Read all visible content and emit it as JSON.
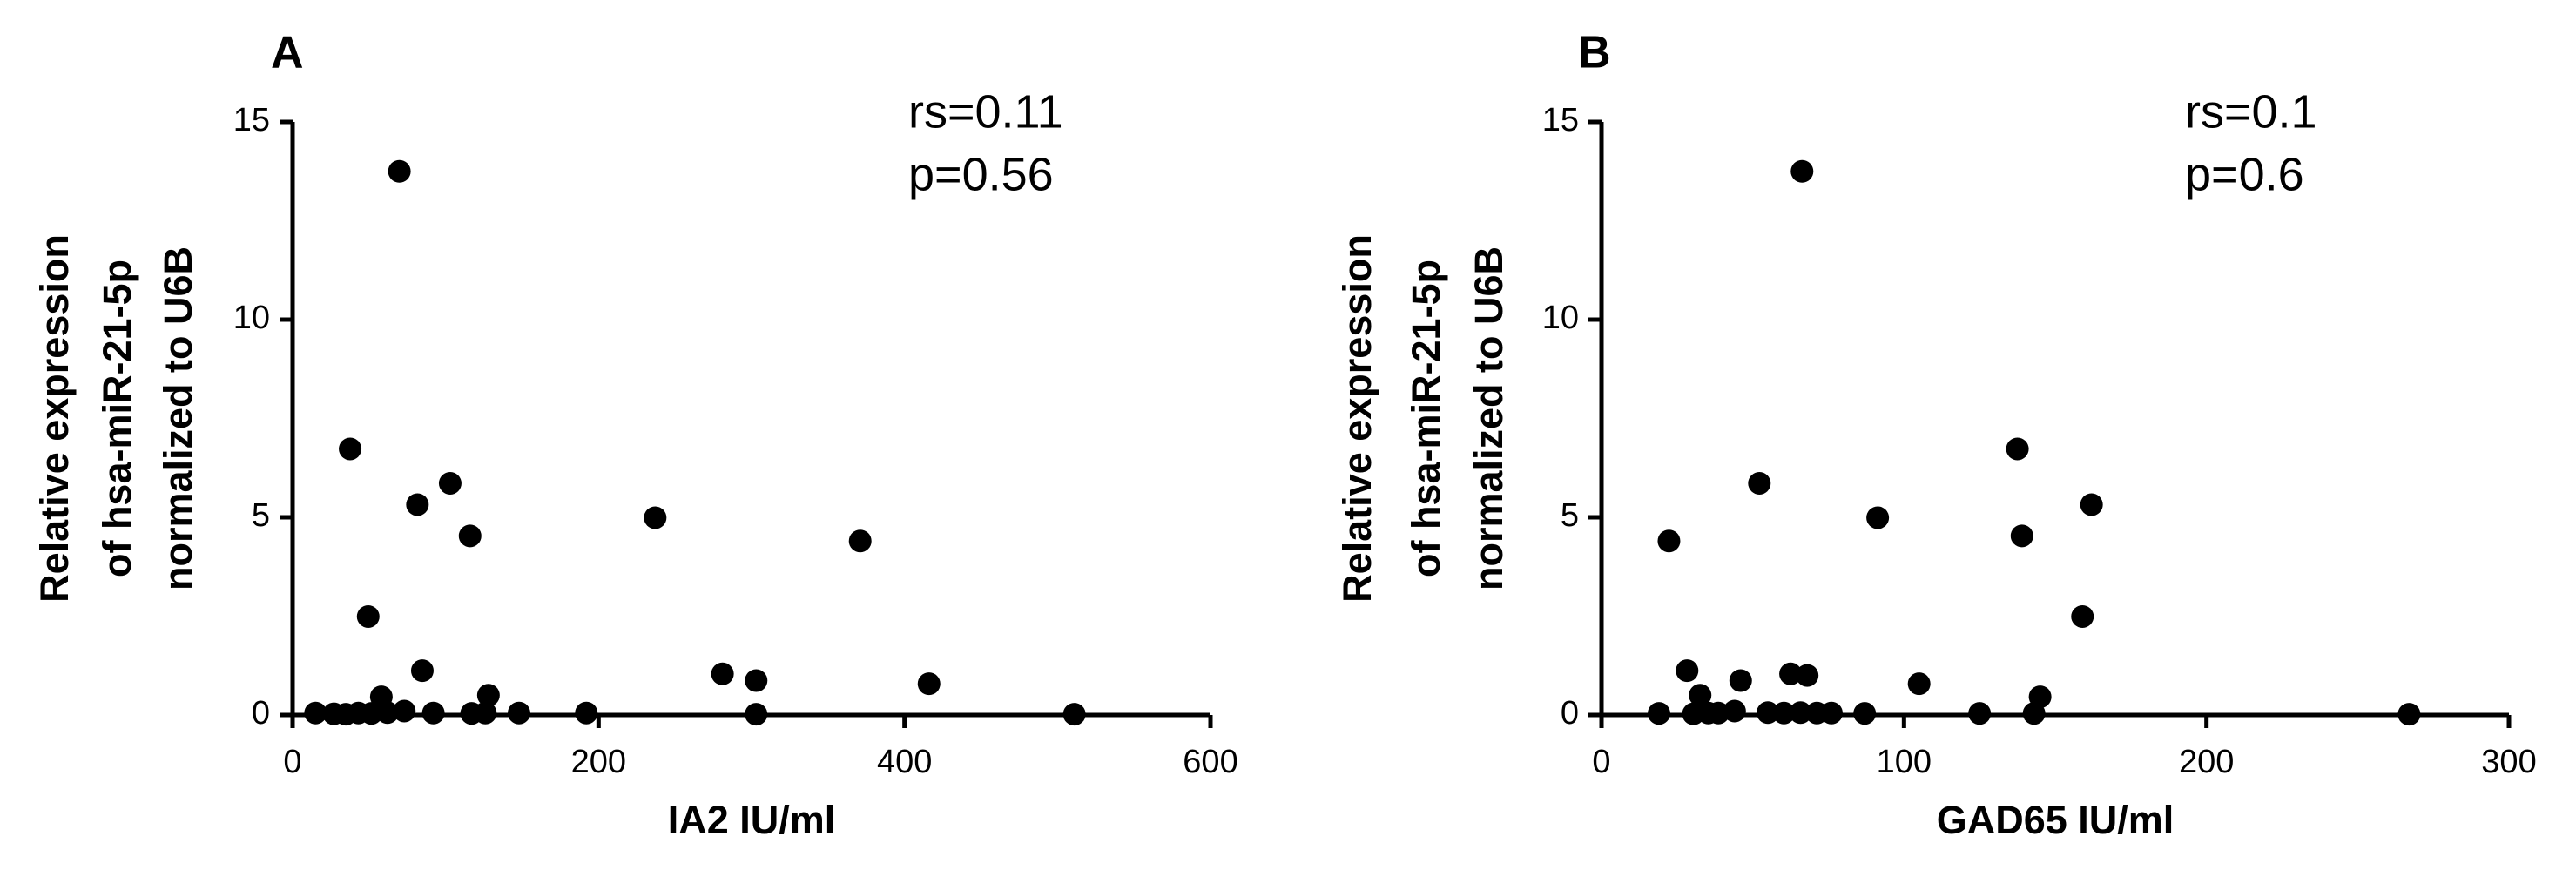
{
  "chart_data": [
    {
      "type": "scatter",
      "panel_label": "A",
      "xlabel": "IA2 IU/ml",
      "ylabel": [
        "Relative expression",
        "of hsa-miR-21-5p",
        "normalized to U6B"
      ],
      "annotations": [
        "rs=0.11",
        "p=0.56"
      ],
      "xlim": [
        0,
        600
      ],
      "xticks": [
        0,
        200,
        400,
        600
      ],
      "ylim": [
        0,
        15
      ],
      "yticks": [
        0,
        5,
        10,
        15
      ],
      "color": "#000000",
      "x": [
        69.8,
        37.6,
        103,
        81.6,
        116,
        237,
        371,
        49.4,
        84.8,
        281,
        303,
        416,
        58,
        128,
        15,
        27,
        34.8,
        43,
        51.5,
        62,
        73,
        92,
        117,
        126,
        148,
        192,
        303,
        511
      ],
      "values": [
        13.75,
        6.73,
        5.86,
        5.32,
        4.53,
        4.99,
        4.4,
        2.49,
        1.12,
        1.04,
        0.87,
        0.79,
        0.46,
        0.5,
        0.05,
        0.03,
        0.02,
        0.05,
        0.04,
        0.06,
        0.1,
        0.05,
        0.04,
        0.05,
        0.05,
        0.05,
        0.02,
        0.02
      ]
    },
    {
      "type": "scatter",
      "panel_label": "B",
      "xlabel": "GAD65 IU/ml",
      "ylabel": [
        "Relative expression",
        "of hsa-miR-21-5p",
        "normalized to U6B"
      ],
      "annotations": [
        "rs=0.1",
        "p=0.6"
      ],
      "xlim": [
        0,
        300
      ],
      "xticks": [
        0,
        100,
        200,
        300
      ],
      "ylim": [
        0,
        15
      ],
      "yticks": [
        0,
        5,
        10,
        15
      ],
      "color": "#000000",
      "x": [
        66.3,
        137.5,
        52.2,
        162,
        139,
        91.3,
        22.3,
        159,
        28.3,
        62.5,
        68,
        105,
        145,
        32.6,
        46,
        19,
        30.4,
        35.3,
        38.6,
        44,
        55,
        60.3,
        65.8,
        71.2,
        76,
        87,
        125,
        143,
        267
      ],
      "values": [
        13.75,
        6.73,
        5.86,
        5.32,
        4.53,
        4.99,
        4.4,
        2.49,
        1.12,
        1.04,
        1.0,
        0.79,
        0.46,
        0.5,
        0.87,
        0.04,
        0.03,
        0.05,
        0.05,
        0.1,
        0.06,
        0.05,
        0.06,
        0.05,
        0.05,
        0.04,
        0.04,
        0.04,
        0.02
      ]
    }
  ]
}
